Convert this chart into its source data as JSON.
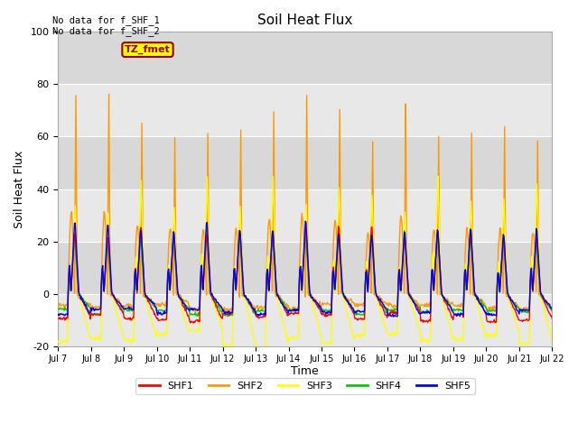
{
  "title": "Soil Heat Flux",
  "ylabel": "Soil Heat Flux",
  "xlabel": "Time",
  "ylim": [
    -20,
    100
  ],
  "annotation_text": "No data for f_SHF_1\nNo data for f_SHF_2",
  "tz_label": "TZ_fmet",
  "legend_entries": [
    "SHF1",
    "SHF2",
    "SHF3",
    "SHF4",
    "SHF5"
  ],
  "line_colors": [
    "#ff0000",
    "#ff9900",
    "#ffff00",
    "#00cc00",
    "#0000ff"
  ],
  "n_days": 15,
  "start_day": 7,
  "band_colors": [
    "#e8e8e8",
    "#d8d8d8",
    "#e8e8e8",
    "#d8d8d8",
    "#e8e8e8",
    "#d8d8d8"
  ],
  "band_edges": [
    -20,
    0,
    20,
    40,
    60,
    80,
    100
  ]
}
